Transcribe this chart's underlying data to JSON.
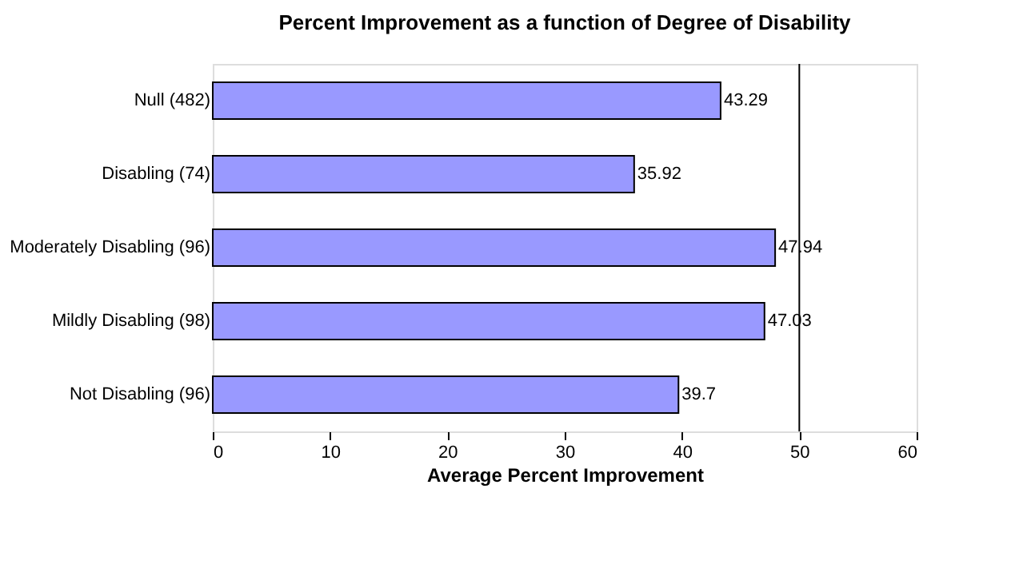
{
  "chart_data": {
    "type": "bar",
    "orientation": "horizontal",
    "title": "Percent Improvement as a function of Degree of Disability",
    "xlabel": "Average Percent Improvement",
    "categories": [
      "Null (482)",
      "Disabling (74)",
      "Moderately Disabling (96)",
      "Mildly Disabling (98)",
      "Not Disabling (96)"
    ],
    "values": [
      43.29,
      35.92,
      47.94,
      47.03,
      39.7
    ],
    "color": "#9999ff",
    "xlim": [
      0,
      60
    ],
    "xticks": [
      0,
      10,
      20,
      30,
      40,
      50,
      60
    ],
    "ref_lines": [
      {
        "axis": "x",
        "value": 50,
        "label": null,
        "color": "#000000"
      }
    ],
    "data_labels": true,
    "grid": false
  }
}
